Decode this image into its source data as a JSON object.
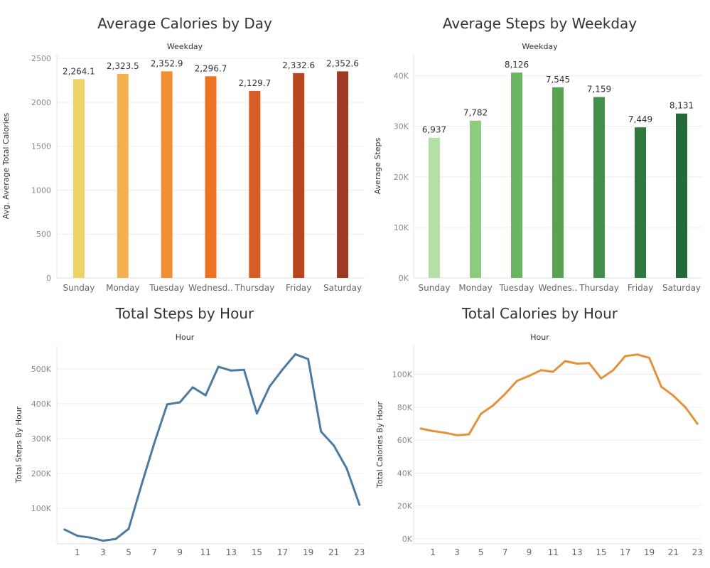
{
  "chart_data": [
    {
      "id": "calories_by_day",
      "type": "bar",
      "title": "Average Calories by Day",
      "xlabel": "Weekday",
      "ylabel": "Avg. Average Total Calories",
      "categories": [
        "Sunday",
        "Monday",
        "Tuesday",
        "Wednesd..",
        "Thursday",
        "Friday",
        "Saturday"
      ],
      "values": [
        2264.1,
        2323.5,
        2352.9,
        2296.7,
        2129.7,
        2332.6,
        2352.6
      ],
      "value_labels": [
        "2,264.1",
        "2,323.5",
        "2,352.9",
        "2,296.7",
        "2,129.7",
        "2,332.6",
        "2,352.6"
      ],
      "colors": [
        "#f0d365",
        "#f5b04f",
        "#f08f34",
        "#ec7524",
        "#d85d24",
        "#b8461f",
        "#9c3a24"
      ],
      "yticks": [
        0,
        500,
        1000,
        1500,
        2000,
        2500
      ],
      "ytick_labels": [
        "0",
        "500",
        "1000",
        "1500",
        "2000",
        "2500"
      ],
      "ylim": [
        0,
        2550
      ],
      "grid": true
    },
    {
      "id": "steps_by_weekday",
      "type": "bar",
      "title": "Average Steps by Weekday",
      "xlabel": "Weekday",
      "ylabel": "Average Steps",
      "categories": [
        "Sunday",
        "Monday",
        "Tuesday",
        "Wednes..",
        "Thursday",
        "Friday",
        "Saturday"
      ],
      "values": [
        27748,
        31128,
        40630,
        37725,
        35795,
        29796,
        32524
      ],
      "value_labels": [
        "6,937",
        "7,782",
        "8,126",
        "7,545",
        "7,159",
        "7,449",
        "8,131"
      ],
      "colors": [
        "#b3e0a6",
        "#8ccc7e",
        "#6ab560",
        "#58a352",
        "#43904a",
        "#2e7a3e",
        "#256b3a"
      ],
      "yticks": [
        0,
        10000,
        20000,
        30000,
        40000
      ],
      "ytick_labels": [
        "0K",
        "10K",
        "20K",
        "30K",
        "40K"
      ],
      "ylim": [
        0,
        44300
      ],
      "grid": true
    },
    {
      "id": "steps_by_hour",
      "type": "line",
      "title": "Total Steps by Hour",
      "xlabel": "Hour",
      "ylabel": "Total Steps By Hour",
      "x": [
        0,
        1,
        2,
        3,
        4,
        5,
        6,
        7,
        8,
        9,
        10,
        11,
        12,
        13,
        14,
        15,
        16,
        17,
        18,
        19,
        20,
        21,
        22,
        23
      ],
      "values": [
        39000,
        21000,
        16000,
        7000,
        12000,
        41000,
        167000,
        287000,
        398000,
        404000,
        447000,
        424000,
        506000,
        495000,
        497000,
        372000,
        450000,
        498000,
        542000,
        528000,
        320000,
        280000,
        215000,
        110000
      ],
      "color": "#4e7aa1",
      "xticks": [
        1,
        3,
        5,
        7,
        9,
        11,
        13,
        15,
        17,
        19,
        21,
        23
      ],
      "xtick_labels": [
        "1",
        "3",
        "5",
        "7",
        "9",
        "11",
        "13",
        "15",
        "17",
        "19",
        "21",
        "23"
      ],
      "yticks": [
        100000,
        200000,
        300000,
        400000,
        500000
      ],
      "ytick_labels": [
        "100K",
        "200K",
        "300K",
        "400K",
        "500K"
      ],
      "xlim": [
        -0.6,
        23.4
      ],
      "ylim": [
        -2000,
        567000
      ],
      "grid": true
    },
    {
      "id": "calories_by_hour",
      "type": "line",
      "title": "Total Calories by Hour",
      "xlabel": "Hour",
      "ylabel": "Total Calories By Hour",
      "x": [
        0,
        1,
        2,
        3,
        4,
        5,
        6,
        7,
        8,
        9,
        10,
        11,
        12,
        13,
        14,
        15,
        16,
        17,
        18,
        19,
        20,
        21,
        22,
        23
      ],
      "values": [
        67000,
        65500,
        64500,
        63000,
        63500,
        76000,
        81000,
        88000,
        96000,
        99000,
        102500,
        101500,
        108000,
        106500,
        106800,
        97500,
        102500,
        111000,
        112000,
        110000,
        92500,
        87000,
        80000,
        70000
      ],
      "color": "#e4923a",
      "xticks": [
        1,
        3,
        5,
        7,
        9,
        11,
        13,
        15,
        17,
        19,
        21,
        23
      ],
      "xtick_labels": [
        "1",
        "3",
        "5",
        "7",
        "9",
        "11",
        "13",
        "15",
        "17",
        "19",
        "21",
        "23"
      ],
      "yticks": [
        0,
        20000,
        40000,
        60000,
        80000,
        100000
      ],
      "ytick_labels": [
        "0K",
        "20K",
        "40K",
        "60K",
        "80K",
        "100K"
      ],
      "xlim": [
        -0.6,
        23.4
      ],
      "ylim": [
        -3000,
        117500
      ],
      "grid": true
    }
  ]
}
